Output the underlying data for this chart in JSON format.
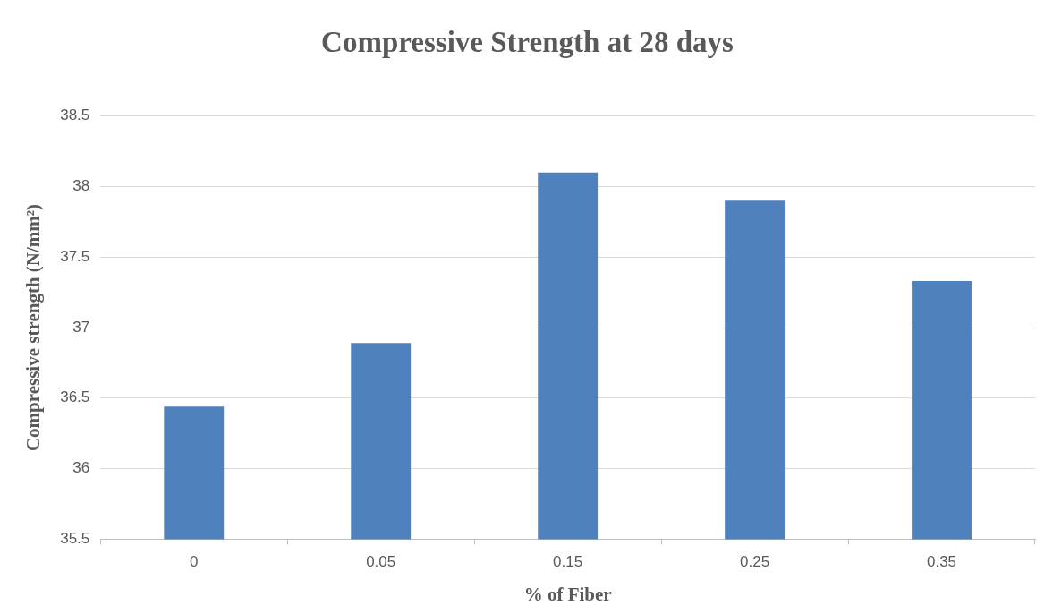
{
  "chart_data": {
    "type": "bar",
    "title": "Compressive Strength at 28 days",
    "xlabel": "% of Fiber",
    "ylabel": "Compressive strength (N/mm²)",
    "categories": [
      "0",
      "0.05",
      "0.15",
      "0.25",
      "0.35"
    ],
    "values": [
      36.44,
      36.89,
      38.1,
      37.9,
      37.33
    ],
    "color": "#4f81bd",
    "ylim": [
      35.5,
      38.5
    ],
    "yticks": [
      35.5,
      36,
      36.5,
      37,
      37.5,
      38,
      38.5
    ],
    "grid": "y",
    "legend": false
  }
}
